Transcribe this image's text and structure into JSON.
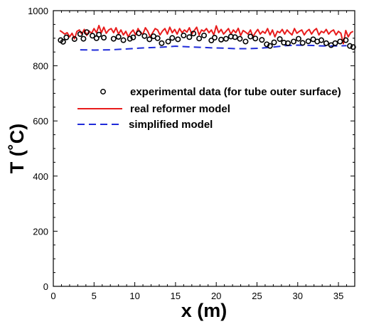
{
  "chart_data": {
    "type": "line",
    "xlabel": "x (m)",
    "ylabel": "T (˚C)",
    "xlim": [
      0,
      37
    ],
    "ylim": [
      0,
      1000
    ],
    "xticks": [
      0,
      5,
      10,
      15,
      20,
      25,
      30,
      35
    ],
    "yticks": [
      0,
      200,
      400,
      600,
      800,
      1000
    ],
    "grid": false,
    "legend_position": "center-right",
    "series": [
      {
        "name": "experimental data (for tube outer surface)",
        "kind": "scatter",
        "marker": "open-circle",
        "color": "#000000",
        "x": [
          0.9,
          1.2,
          1.6,
          2.6,
          3.3,
          3.7,
          4.1,
          4.8,
          5.3,
          5.6,
          6.2,
          7.4,
          8.0,
          8.6,
          9.4,
          9.8,
          10.5,
          11.2,
          11.8,
          12.3,
          12.8,
          13.3,
          14.1,
          14.6,
          15.3,
          16.0,
          16.7,
          17.2,
          17.9,
          18.5,
          19.4,
          19.8,
          20.6,
          21.2,
          21.8,
          22.3,
          22.9,
          23.6,
          24.2,
          24.8,
          25.6,
          26.2,
          26.6,
          27.1,
          27.8,
          28.3,
          28.8,
          29.5,
          30.1,
          30.6,
          31.3,
          31.9,
          32.4,
          32.9,
          33.5,
          34.1,
          34.6,
          35.2,
          35.9,
          36.4,
          36.8
        ],
        "y": [
          893,
          887,
          903,
          897,
          915,
          898,
          922,
          909,
          900,
          913,
          902,
          898,
          905,
          893,
          898,
          903,
          918,
          908,
          896,
          907,
          900,
          882,
          888,
          901,
          896,
          910,
          904,
          917,
          899,
          910,
          892,
          902,
          895,
          898,
          906,
          904,
          898,
          888,
          906,
          899,
          894,
          878,
          872,
          885,
          897,
          884,
          882,
          888,
          898,
          883,
          889,
          896,
          888,
          893,
          882,
          875,
          882,
          888,
          893,
          872,
          868
        ]
      },
      {
        "name": "real reformer model",
        "kind": "line",
        "style": "solid",
        "color": "#e81c1c",
        "x": [
          0.8,
          1.1,
          1.4,
          1.7,
          2.0,
          2.3,
          2.6,
          2.9,
          3.2,
          3.5,
          3.8,
          4.1,
          4.4,
          4.7,
          5.0,
          5.3,
          5.6,
          5.9,
          6.2,
          6.5,
          6.8,
          7.1,
          7.4,
          7.7,
          8.0,
          8.3,
          8.6,
          8.9,
          9.2,
          9.5,
          9.8,
          10.1,
          10.4,
          10.7,
          11.0,
          11.3,
          11.6,
          11.9,
          12.2,
          12.5,
          12.8,
          13.1,
          13.4,
          13.7,
          14.0,
          14.3,
          14.6,
          14.9,
          15.2,
          15.5,
          15.8,
          16.1,
          16.4,
          16.7,
          17.0,
          17.3,
          17.6,
          17.9,
          18.2,
          18.5,
          18.8,
          19.1,
          19.4,
          19.7,
          20.0,
          20.3,
          20.6,
          20.9,
          21.2,
          21.5,
          21.8,
          22.1,
          22.4,
          22.7,
          23.0,
          23.3,
          23.6,
          23.9,
          24.2,
          24.5,
          24.8,
          25.1,
          25.4,
          25.7,
          26.0,
          26.3,
          26.6,
          26.9,
          27.2,
          27.5,
          27.8,
          28.1,
          28.4,
          28.7,
          29.0,
          29.3,
          29.6,
          29.9,
          30.2,
          30.5,
          30.8,
          31.1,
          31.4,
          31.7,
          32.0,
          32.3,
          32.6,
          32.9,
          33.2,
          33.5,
          33.8,
          34.1,
          34.4,
          34.7,
          35.0,
          35.3,
          35.6,
          35.9,
          36.2,
          36.5,
          36.8
        ],
        "y": [
          928,
          922,
          915,
          920,
          905,
          918,
          898,
          925,
          930,
          915,
          932,
          910,
          926,
          918,
          935,
          920,
          946,
          920,
          940,
          918,
          930,
          935,
          920,
          938,
          915,
          930,
          912,
          925,
          905,
          920,
          930,
          912,
          935,
          920,
          915,
          938,
          925,
          905,
          920,
          935,
          930,
          912,
          926,
          935,
          915,
          940,
          920,
          932,
          915,
          935,
          920,
          930,
          922,
          938,
          915,
          928,
          940,
          912,
          930,
          925,
          935,
          920,
          930,
          912,
          945,
          920,
          932,
          915,
          925,
          935,
          915,
          930,
          920,
          936,
          910,
          928,
          922,
          915,
          930,
          905,
          920,
          932,
          915,
          925,
          918,
          935,
          912,
          930,
          905,
          925,
          920,
          932,
          915,
          930,
          920,
          912,
          935,
          918,
          925,
          930,
          912,
          925,
          932,
          915,
          928,
          935,
          912,
          925,
          920,
          932,
          915,
          925,
          930,
          912,
          925,
          918,
          880,
          928,
          905,
          920,
          925
        ]
      },
      {
        "name": "simplified model",
        "kind": "line",
        "style": "dashed",
        "color": "#1f2bd9",
        "x": [
          3.3,
          5,
          7,
          9,
          10.5,
          12,
          13.5,
          15,
          16.5,
          18,
          19.5,
          21,
          22.5,
          24,
          25.5,
          27,
          28.5,
          30,
          31.5,
          33,
          34.5,
          36
        ],
        "y": [
          858,
          857,
          858,
          861,
          864,
          866,
          868,
          871,
          869,
          867,
          865,
          864,
          862,
          862,
          864,
          868,
          873,
          875,
          874,
          872,
          872,
          873
        ]
      }
    ]
  }
}
